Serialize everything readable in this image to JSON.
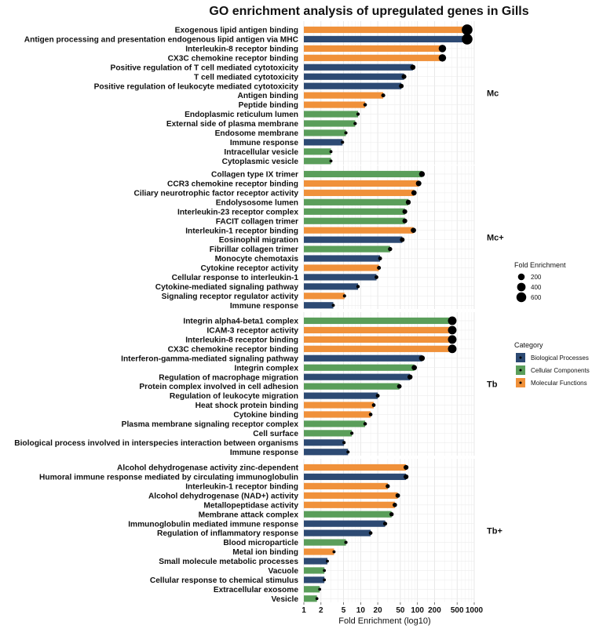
{
  "chart_data": {
    "type": "bar",
    "title": "GO enrichment analysis of upregulated genes in Gills",
    "xlabel": "Fold Enrichment (log10)",
    "ylabel": "",
    "x_scale": "log10",
    "xlim": [
      1,
      1000
    ],
    "x_ticks": [
      1,
      2,
      5,
      10,
      20,
      50,
      100,
      200,
      500,
      1000
    ],
    "categories": [
      {
        "name": "Biological Processes",
        "color": "#2d4a73"
      },
      {
        "name": "Cellular Components",
        "color": "#5a9e5a"
      },
      {
        "name": "Molecular Functions",
        "color": "#f0913a"
      }
    ],
    "size_legend": {
      "title": "Fold Enrichment",
      "values": [
        200,
        400,
        600
      ]
    },
    "category_legend_title": "Category",
    "panels": [
      {
        "name": "Mc",
        "terms": [
          {
            "term": "Exogenous lipid antigen binding",
            "category": "Molecular Functions",
            "fold": 750
          },
          {
            "term": "Antigen processing and presentation endogenous lipid antigen via MHC",
            "category": "Biological Processes",
            "fold": 750
          },
          {
            "term": "Interleukin-8 receptor binding",
            "category": "Molecular Functions",
            "fold": 275
          },
          {
            "term": "CX3C chemokine receptor binding",
            "category": "Molecular Functions",
            "fold": 275
          },
          {
            "term": "Positive regulation of T cell mediated cytotoxicity",
            "category": "Biological Processes",
            "fold": 83
          },
          {
            "term": "T cell mediated cytotoxicity",
            "category": "Biological Processes",
            "fold": 58
          },
          {
            "term": "Positive regulation of leukocyte mediated cytotoxicity",
            "category": "Biological Processes",
            "fold": 52
          },
          {
            "term": "Antigen binding",
            "category": "Molecular Functions",
            "fold": 25
          },
          {
            "term": "Peptide binding",
            "category": "Molecular Functions",
            "fold": 12
          },
          {
            "term": "Endoplasmic reticulum lumen",
            "category": "Cellular Components",
            "fold": 9
          },
          {
            "term": "External side of plasma membrane",
            "category": "Cellular Components",
            "fold": 8
          },
          {
            "term": "Endosome membrane",
            "category": "Cellular Components",
            "fold": 5.5
          },
          {
            "term": "Immune response",
            "category": "Biological Processes",
            "fold": 4.8
          },
          {
            "term": "Intracellular vesicle",
            "category": "Cellular Components",
            "fold": 3
          },
          {
            "term": "Cytoplasmic vesicle",
            "category": "Cellular Components",
            "fold": 3
          }
        ]
      },
      {
        "name": "Mc+",
        "terms": [
          {
            "term": "Collagen type IX trimer",
            "category": "Cellular Components",
            "fold": 120
          },
          {
            "term": "CCR3 chemokine receptor binding",
            "category": "Molecular Functions",
            "fold": 105
          },
          {
            "term": "Ciliary neurotrophic factor receptor activity",
            "category": "Molecular Functions",
            "fold": 87
          },
          {
            "term": "Endolysosome lumen",
            "category": "Cellular Components",
            "fold": 69
          },
          {
            "term": "Interleukin-23 receptor complex",
            "category": "Cellular Components",
            "fold": 60
          },
          {
            "term": "FACIT collagen trimer",
            "category": "Cellular Components",
            "fold": 60
          },
          {
            "term": "Interleukin-1 receptor binding",
            "category": "Molecular Functions",
            "fold": 85
          },
          {
            "term": "Eosinophil migration",
            "category": "Biological Processes",
            "fold": 54
          },
          {
            "term": "Fibrillar collagen trimer",
            "category": "Cellular Components",
            "fold": 33
          },
          {
            "term": "Monocyte chemotaxis",
            "category": "Biological Processes",
            "fold": 22
          },
          {
            "term": "Cytokine receptor activity",
            "category": "Molecular Functions",
            "fold": 21
          },
          {
            "term": "Cellular response to interleukin-1",
            "category": "Biological Processes",
            "fold": 19
          },
          {
            "term": "Cytokine-mediated signaling pathway",
            "category": "Biological Processes",
            "fold": 9
          },
          {
            "term": "Signaling receptor regulator activity",
            "category": "Molecular Functions",
            "fold": 5.2
          },
          {
            "term": "Immune response",
            "category": "Biological Processes",
            "fold": 3.3
          }
        ]
      },
      {
        "name": "Tb",
        "terms": [
          {
            "term": "Integrin alpha4-beta1 complex",
            "category": "Cellular Components",
            "fold": 410
          },
          {
            "term": "ICAM-3 receptor activity",
            "category": "Molecular Functions",
            "fold": 410
          },
          {
            "term": "Interleukin-8 receptor binding",
            "category": "Molecular Functions",
            "fold": 410
          },
          {
            "term": "CX3C chemokine receptor binding",
            "category": "Molecular Functions",
            "fold": 410
          },
          {
            "term": "Interferon-gamma-mediated signaling pathway",
            "category": "Biological Processes",
            "fold": 120
          },
          {
            "term": "Integrin complex",
            "category": "Cellular Components",
            "fold": 88
          },
          {
            "term": "Regulation of macrophage migration",
            "category": "Biological Processes",
            "fold": 74
          },
          {
            "term": "Protein complex involved in cell adhesion",
            "category": "Cellular Components",
            "fold": 48
          },
          {
            "term": "Regulation of leukocyte migration",
            "category": "Biological Processes",
            "fold": 20
          },
          {
            "term": "Heat shock protein binding",
            "category": "Molecular Functions",
            "fold": 17
          },
          {
            "term": "Cytokine binding",
            "category": "Molecular Functions",
            "fold": 15
          },
          {
            "term": "Plasma membrane signaling receptor complex",
            "category": "Cellular Components",
            "fold": 12
          },
          {
            "term": "Cell surface",
            "category": "Cellular Components",
            "fold": 7
          },
          {
            "term": "Biological process involved in interspecies interaction between organisms",
            "category": "Biological Processes",
            "fold": 5.1
          },
          {
            "term": "Immune response",
            "category": "Biological Processes",
            "fold": 6
          }
        ]
      },
      {
        "name": "Tb+",
        "terms": [
          {
            "term": "Alcohol dehydrogenase activity zinc-dependent",
            "category": "Molecular Functions",
            "fold": 63
          },
          {
            "term": "Humoral immune response mediated by circulating immunoglobulin",
            "category": "Biological Processes",
            "fold": 63
          },
          {
            "term": "Interleukin-1 receptor binding",
            "category": "Molecular Functions",
            "fold": 30
          },
          {
            "term": "Alcohol dehydrogenase (NAD+) activity",
            "category": "Molecular Functions",
            "fold": 45
          },
          {
            "term": "Metallopeptidase activity",
            "category": "Molecular Functions",
            "fold": 40
          },
          {
            "term": "Membrane attack complex",
            "category": "Cellular Components",
            "fold": 35
          },
          {
            "term": "Immunoglobulin mediated immune response",
            "category": "Biological Processes",
            "fold": 27
          },
          {
            "term": "Regulation of inflammatory response",
            "category": "Biological Processes",
            "fold": 15
          },
          {
            "term": "Blood microparticle",
            "category": "Cellular Components",
            "fold": 5.5
          },
          {
            "term": "Metal ion binding",
            "category": "Molecular Functions",
            "fold": 3.4
          },
          {
            "term": "Small molecule metabolic processes",
            "category": "Biological Processes",
            "fold": 2.6
          },
          {
            "term": "Vacuole",
            "category": "Cellular Components",
            "fold": 2.3
          },
          {
            "term": "Cellular response to chemical stimulus",
            "category": "Biological Processes",
            "fold": 2.3
          },
          {
            "term": "Extracellular exosome",
            "category": "Cellular Components",
            "fold": 1.9
          },
          {
            "term": "Vesicle",
            "category": "Cellular Components",
            "fold": 1.7
          }
        ]
      }
    ]
  }
}
